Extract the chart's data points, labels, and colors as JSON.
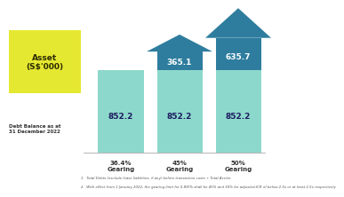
{
  "title": "Asset\n(S$'000)",
  "debt_label": "Debt Balance as at\n31 December 2022",
  "bars": [
    {
      "label": "36.4%\nGearing",
      "debt": 852.2,
      "headroom": 0.0,
      "color_bar": "#8dd8cc",
      "color_arrow": null
    },
    {
      "label": "45%\nGearing",
      "debt": 852.2,
      "headroom": 365.1,
      "color_bar": "#8dd8cc",
      "color_arrow": "#2e7d9e"
    },
    {
      "label": "50%\nGearing",
      "debt": 852.2,
      "headroom": 635.7,
      "color_bar": "#8dd8cc",
      "color_arrow": "#2e7d9e"
    }
  ],
  "title_bg_color": "#e5e830",
  "title_text_color": "#2c2c00",
  "debt_value_color": "#1a1a5e",
  "headroom_value_color": "#ffffff",
  "footnote1": "1.  Total Debts (exclude lease liabilities, if any) before transaction costs ÷ Total Assets",
  "footnote2": "2.  With effect from 1 January 2022, the gearing limit for S-REITs shall be 45% and 50% for adjusted-ICR of below 2.5x or at least 2.5x respectively",
  "background_color": "#ffffff",
  "axis_line_color": "#aaaaaa"
}
